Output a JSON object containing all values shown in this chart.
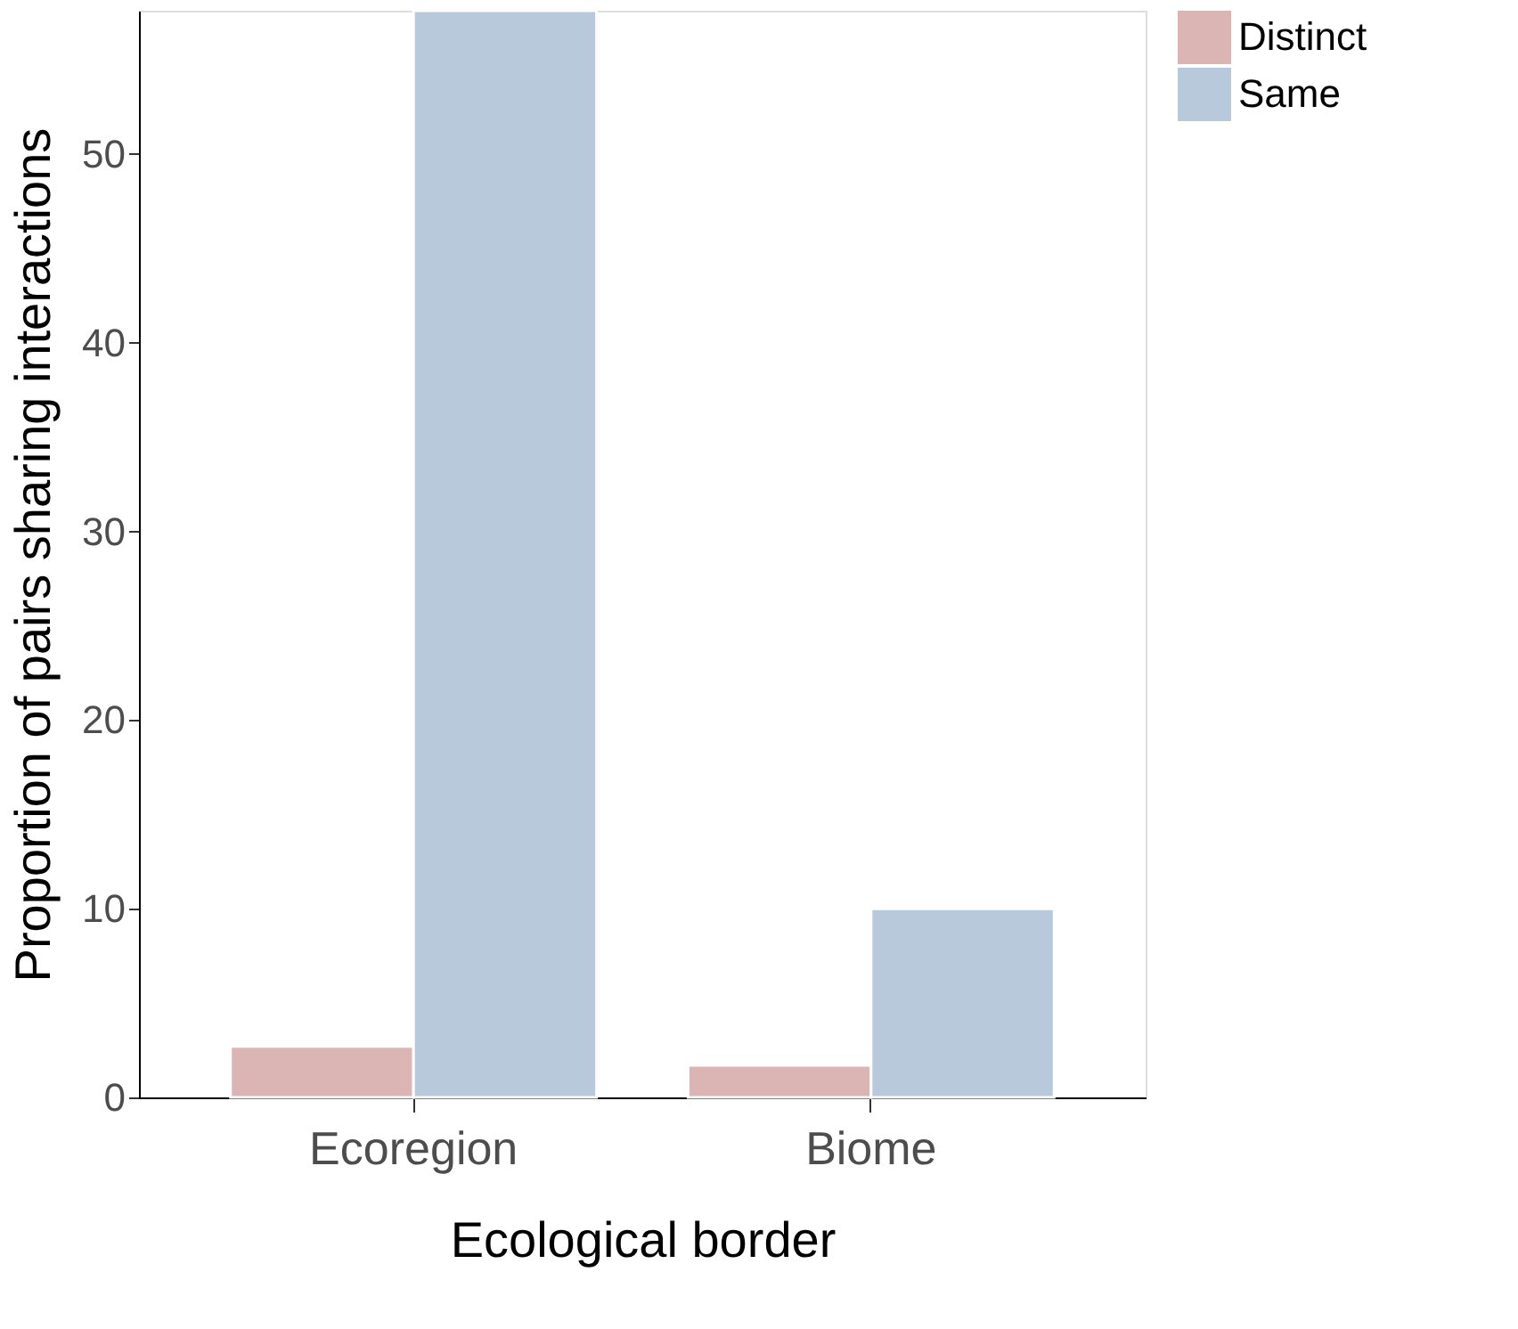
{
  "chart_data": {
    "type": "bar",
    "xlabel": "Ecological border",
    "ylabel": "Proportion of pairs sharing interactions",
    "categories": [
      "Ecoregion",
      "Biome"
    ],
    "series": [
      {
        "name": "Distinct",
        "color": "#dbb4b4",
        "values": [
          2.7,
          1.7
        ]
      },
      {
        "name": "Same",
        "color": "#b9c9dc",
        "values": [
          57.6,
          10.0
        ]
      }
    ],
    "ylim": [
      0,
      57.6
    ],
    "yticks": [
      0,
      10,
      20,
      30,
      40,
      50
    ],
    "grid": false,
    "legend": "right"
  }
}
